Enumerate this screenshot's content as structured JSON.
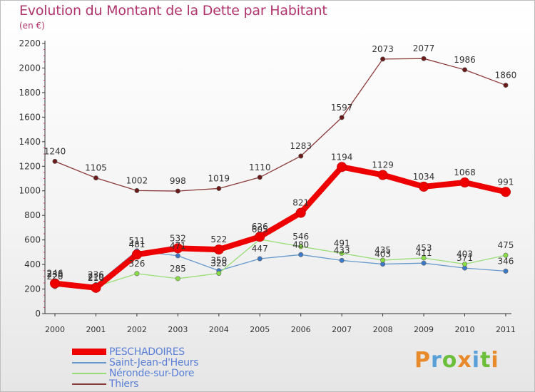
{
  "title": "Evolution du Montant de la Dette par Habitant",
  "subtitle": "(en €)",
  "brand": "Proxiti",
  "colors": {
    "title": "#b0336b",
    "legend_text": "#5a7fd6",
    "axis": "#333333"
  },
  "chart_data": {
    "type": "line",
    "x": [
      "2000",
      "2001",
      "2002",
      "2003",
      "2004",
      "2005",
      "2006",
      "2007",
      "2008",
      "2009",
      "2010",
      "2011"
    ],
    "ylim": [
      0,
      2200
    ],
    "yticks": [
      0,
      200,
      400,
      600,
      800,
      1000,
      1200,
      1400,
      1600,
      1800,
      2000,
      2200
    ],
    "grid": false,
    "legend_position": "bottom-left",
    "series": [
      {
        "name": "PESCHADOIRES",
        "color": "#ee0000",
        "marker_fill": "#ee0000",
        "values": [
          246,
          210,
          481,
          532,
          522,
          626,
          821,
          1194,
          1129,
          1034,
          1068,
          991
        ],
        "labels": [
          "246",
          "210",
          "481",
          "532",
          "522",
          "626",
          "821",
          "1194",
          "1129",
          "1034",
          "1068",
          "991"
        ]
      },
      {
        "name": "Saint-Jean-d'Heurs",
        "color": "#6699cc",
        "marker_fill": "#3a78c8",
        "values": [
          220,
          236,
          511,
          471,
          350,
          447,
          480,
          433,
          403,
          411,
          371,
          346
        ],
        "labels": [
          "220",
          "236",
          "511",
          "471",
          "350",
          "447",
          "480",
          "433",
          "403",
          "411",
          "371",
          "346"
        ]
      },
      {
        "name": "Néronde-sur-Dore",
        "color": "#99dd77",
        "marker_fill": "#88dd44",
        "values": [
          238,
          219,
          326,
          285,
          328,
          605,
          546,
          491,
          435,
          453,
          403,
          475
        ],
        "labels": [
          "238",
          "219",
          "326",
          "285",
          "328",
          "605",
          "546",
          "491",
          "435",
          "453",
          "403",
          "475"
        ]
      },
      {
        "name": "Thiers",
        "color": "#8b3a3a",
        "marker_fill": "#6b1a1a",
        "values": [
          1240,
          1105,
          1002,
          998,
          1019,
          1110,
          1283,
          1597,
          2073,
          2077,
          1986,
          1860
        ],
        "labels": [
          "1240",
          "1105",
          "1002",
          "998",
          "1019",
          "1110",
          "1283",
          "1597",
          "2073",
          "2077",
          "1986",
          "1860"
        ]
      }
    ]
  }
}
